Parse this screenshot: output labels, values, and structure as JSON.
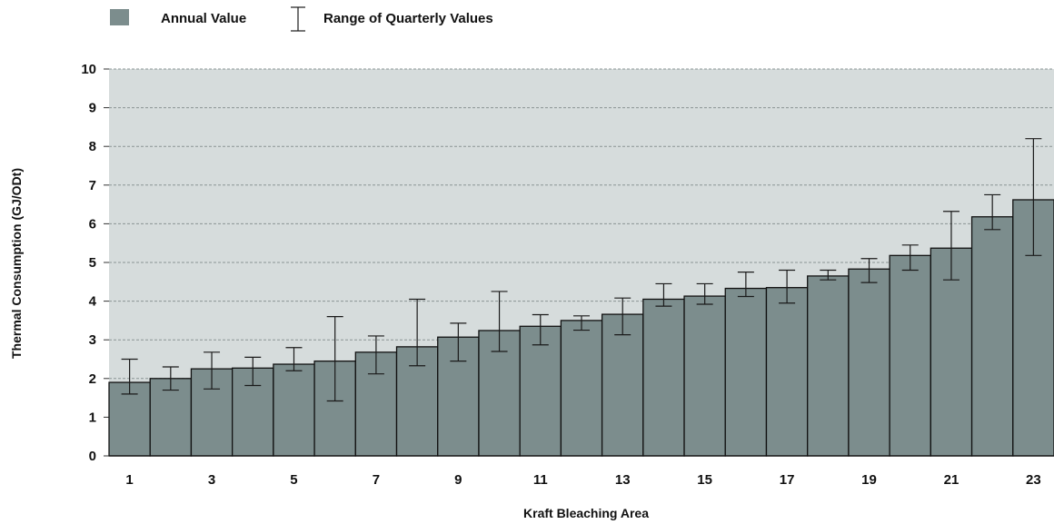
{
  "chart_data": {
    "type": "bar",
    "title": "",
    "xlabel": "Kraft Bleaching Area",
    "ylabel": "Thermal Consumption (GJ/ODt)",
    "ylim": [
      0,
      10
    ],
    "yticks": [
      "0",
      "1",
      "2",
      "3",
      "4",
      "5",
      "6",
      "7",
      "8",
      "9",
      "10"
    ],
    "grid": "horizontal-dashed",
    "legend_position": "top-left",
    "legend": {
      "bar_label": "Annual Value",
      "range_label": "Range of Quarterly Values"
    },
    "categories": [
      "1",
      "2",
      "3",
      "4",
      "5",
      "6",
      "7",
      "8",
      "9",
      "10",
      "11",
      "12",
      "13",
      "14",
      "15",
      "16",
      "17",
      "18",
      "19",
      "20",
      "21",
      "22",
      "23"
    ],
    "xtick_labels": [
      "1",
      "3",
      "5",
      "7",
      "9",
      "11",
      "13",
      "15",
      "17",
      "19",
      "21",
      "23"
    ],
    "series": [
      {
        "name": "Annual Value",
        "values": [
          1.9,
          2.0,
          2.25,
          2.27,
          2.37,
          2.45,
          2.68,
          2.82,
          3.07,
          3.24,
          3.35,
          3.5,
          3.66,
          4.05,
          4.13,
          4.33,
          4.35,
          4.65,
          4.83,
          5.18,
          5.37,
          6.18,
          6.62
        ],
        "range_low": [
          1.6,
          1.7,
          1.73,
          1.82,
          2.2,
          1.42,
          2.12,
          2.33,
          2.45,
          2.7,
          2.87,
          3.25,
          3.13,
          3.87,
          3.92,
          4.12,
          3.95,
          4.55,
          4.48,
          4.8,
          4.55,
          5.85,
          5.18
        ],
        "range_high": [
          2.5,
          2.3,
          2.68,
          2.55,
          2.8,
          3.6,
          3.1,
          4.05,
          3.43,
          4.25,
          3.65,
          3.62,
          4.08,
          4.45,
          4.45,
          4.75,
          4.8,
          4.8,
          5.1,
          5.45,
          6.32,
          6.75,
          8.2
        ]
      }
    ],
    "colors": {
      "bar_fill": "#7c8d8d",
      "bar_stroke": "#111111",
      "plot_background": "#d6dcdc",
      "gridline": "#8a9494",
      "error_bar": "#1a1a1a"
    }
  }
}
